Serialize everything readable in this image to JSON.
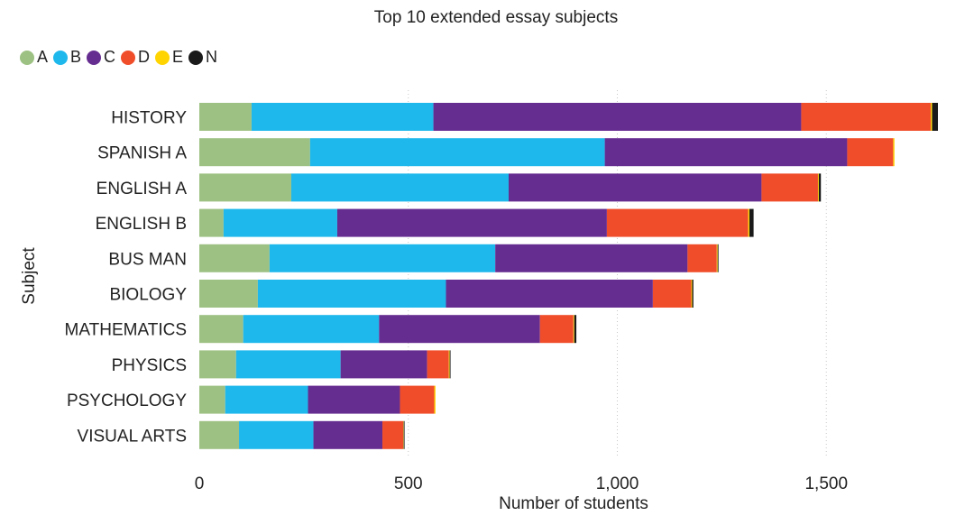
{
  "chart_data": {
    "type": "bar",
    "orientation": "horizontal",
    "stacked": true,
    "title": "Top 10 extended essay subjects",
    "xlabel": "Number of students",
    "ylabel": "Subject",
    "xlim": [
      0,
      1780
    ],
    "xticks": [
      0,
      500,
      1000,
      1500
    ],
    "xtick_labels": [
      "0",
      "500",
      "1,000",
      "1,500"
    ],
    "grid": "vertical dotted",
    "legend_position": "top-left",
    "categories": [
      "HISTORY",
      "SPANISH A",
      "ENGLISH A",
      "ENGLISH B",
      "BUS MAN",
      "BIOLOGY",
      "MATHEMATICS",
      "PHYSICS",
      "PSYCHOLOGY",
      "VISUAL ARTS"
    ],
    "series": [
      {
        "name": "A",
        "color": "#9dc183",
        "values": [
          125,
          265,
          220,
          58,
          168,
          140,
          105,
          88,
          62,
          95
        ]
      },
      {
        "name": "B",
        "color": "#1fb8ec",
        "values": [
          435,
          705,
          520,
          272,
          540,
          450,
          325,
          250,
          198,
          178
        ]
      },
      {
        "name": "C",
        "color": "#662d91",
        "values": [
          880,
          580,
          605,
          645,
          460,
          495,
          385,
          207,
          220,
          165
        ]
      },
      {
        "name": "D",
        "color": "#f04e2b",
        "values": [
          310,
          110,
          135,
          338,
          70,
          92,
          80,
          52,
          82,
          50
        ]
      },
      {
        "name": "E",
        "color": "#ffd400",
        "values": [
          3,
          3,
          2,
          3,
          2,
          2,
          2,
          2,
          3,
          1
        ]
      },
      {
        "name": "N",
        "color": "#1a1a1a",
        "values": [
          14,
          0,
          5,
          10,
          2,
          3,
          5,
          2,
          0,
          2
        ]
      }
    ]
  }
}
